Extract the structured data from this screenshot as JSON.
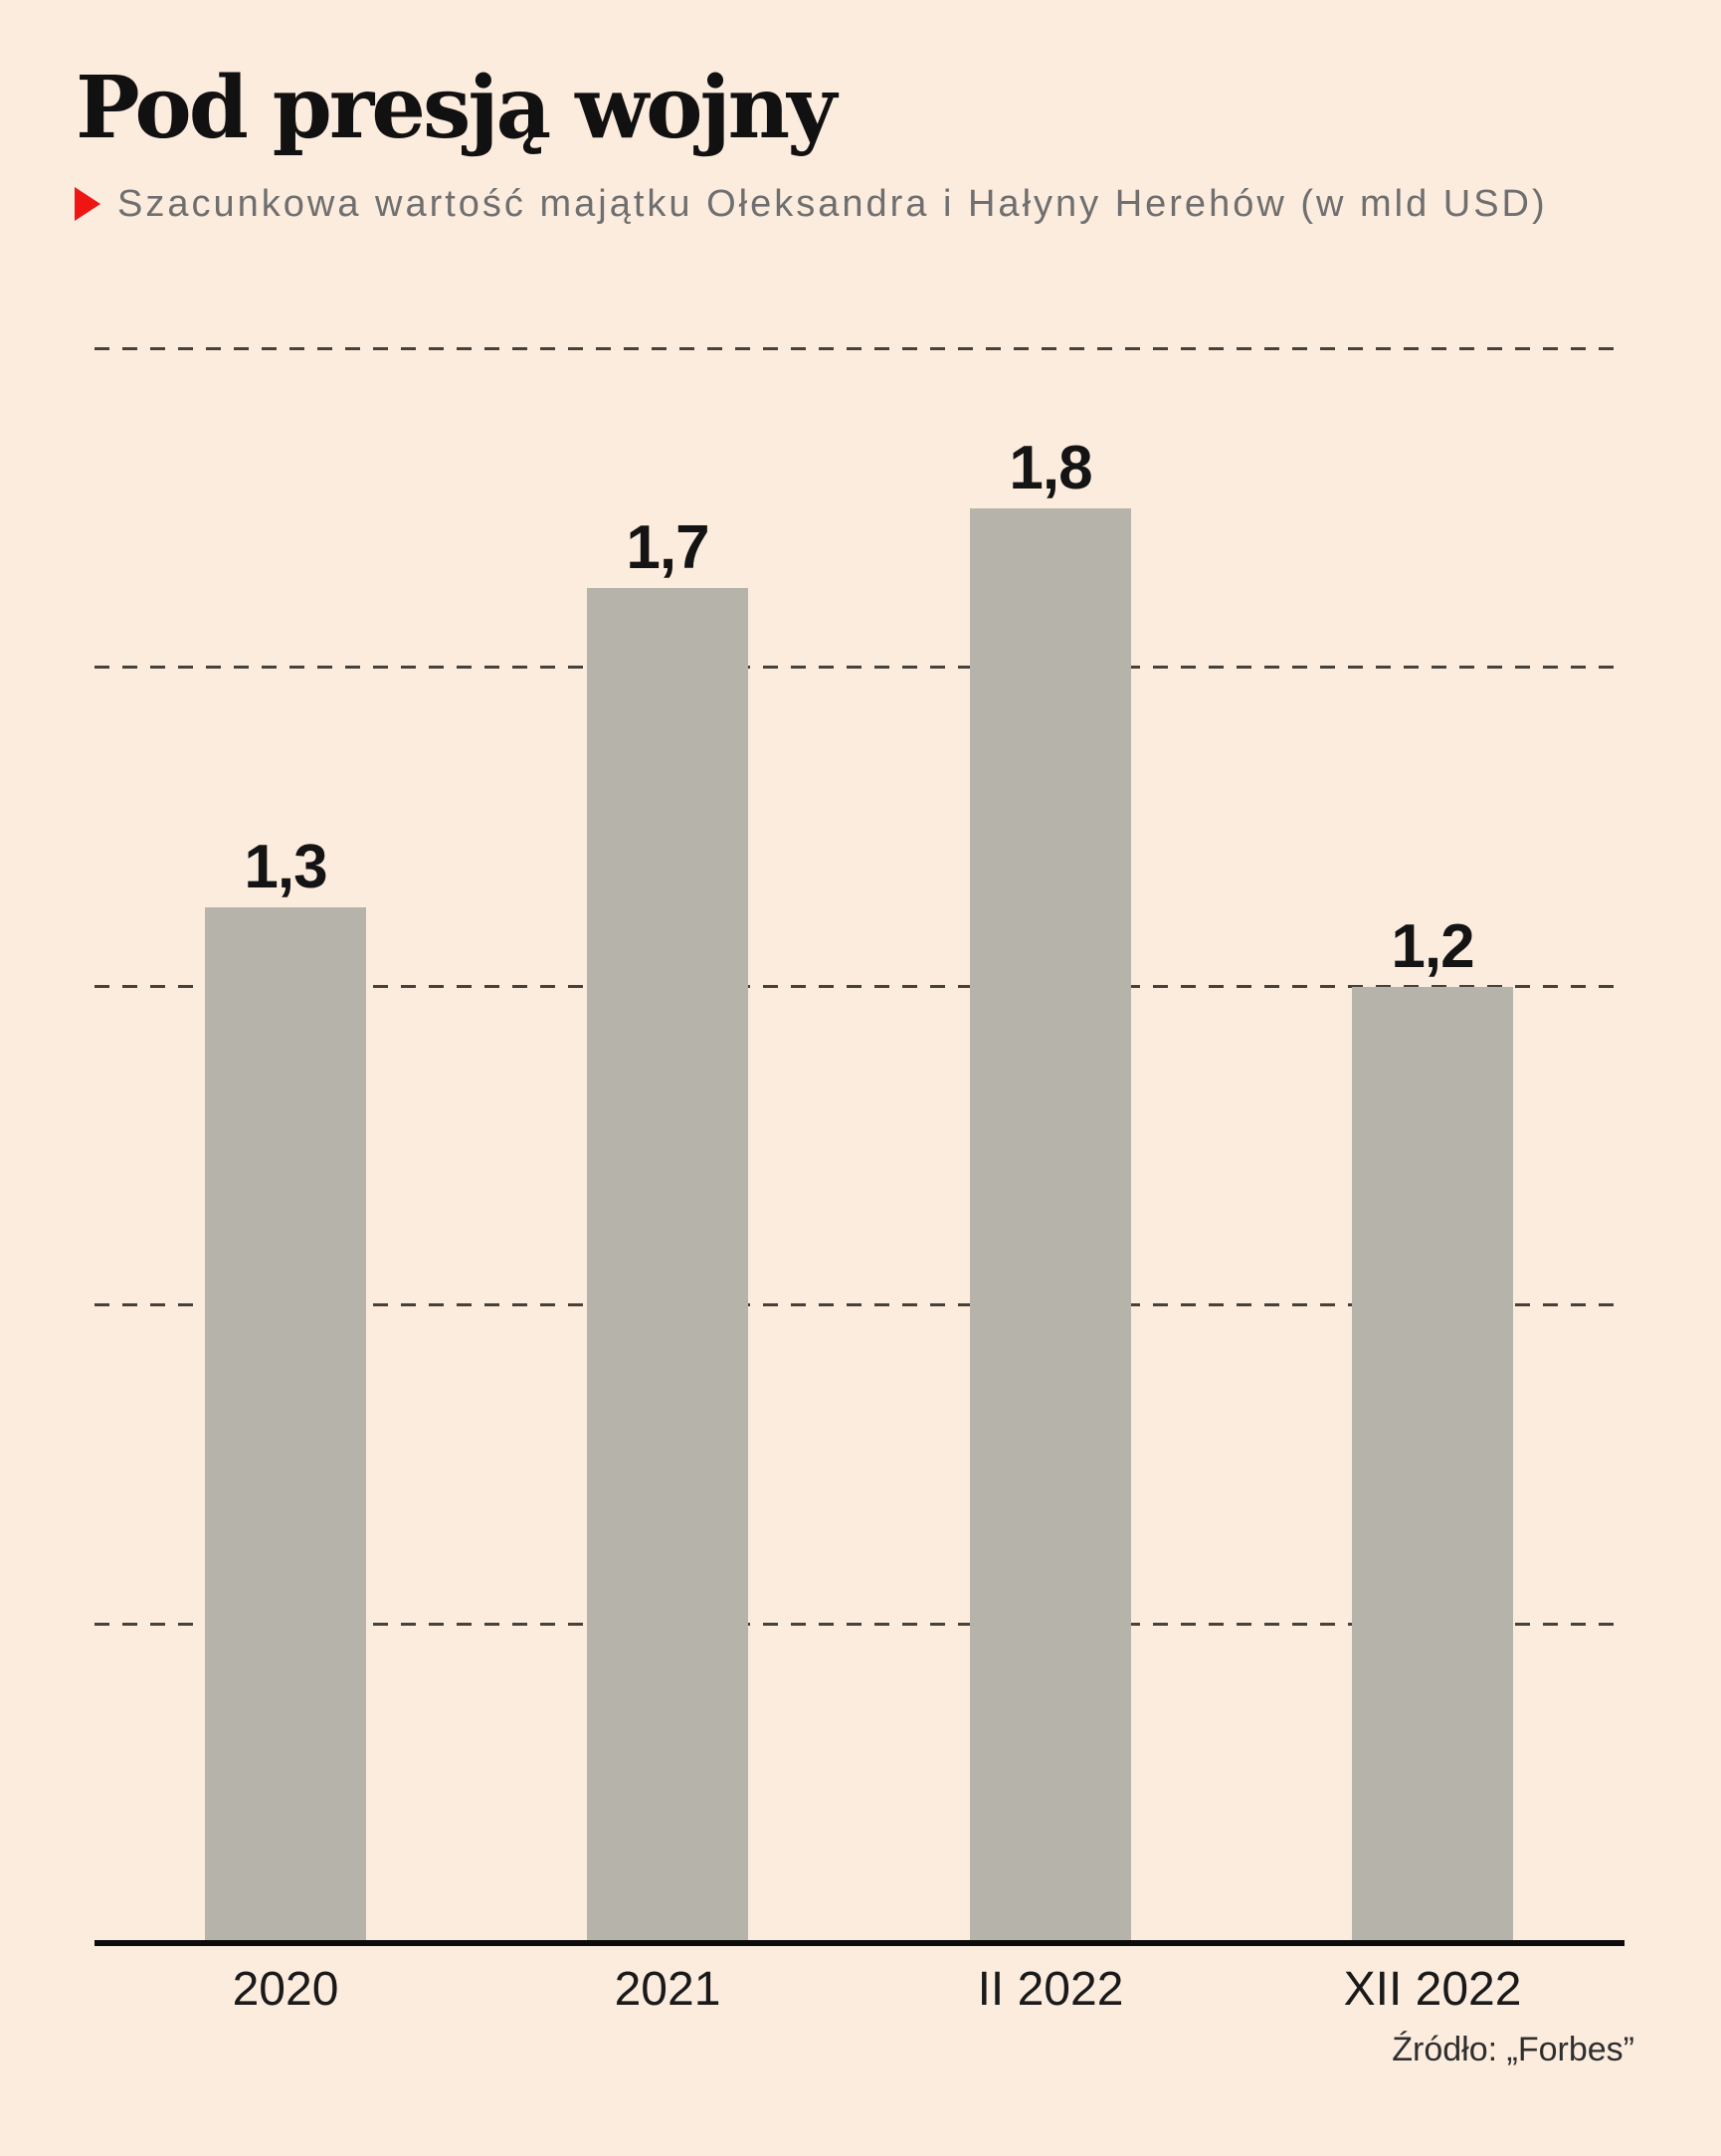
{
  "header": {
    "title": "Pod presją wojny",
    "subtitle": "Szacunkowa wartość majątku Ołeksandra i Hałyny Herehów (w mld USD)",
    "bullet_icon": "right-pointing-triangle"
  },
  "source_note": "Źródło: „Forbes”",
  "colors": {
    "background": "#fbecde",
    "bar": "#b5b3aa",
    "title": "#111111",
    "subtitle": "#6f6f6f",
    "accent_red": "#ee1512",
    "gridline": "#46423b",
    "axis": "#0c0c0c",
    "value_label": "#141414",
    "tick_label": "#1a1a1a",
    "source": "#2e2e2e"
  },
  "chart_data": {
    "type": "bar",
    "categories": [
      "2020",
      "2021",
      "II 2022",
      "XII 2022"
    ],
    "values": [
      1.3,
      1.7,
      1.8,
      1.2
    ],
    "value_labels": [
      "1,3",
      "1,7",
      "1,8",
      "1,2"
    ],
    "title": "Pod presją wojny",
    "subtitle": "Szacunkowa wartość majątku Ołeksandra i Hałyny Herehów (w mld USD)",
    "xlabel": "",
    "ylabel": "",
    "unit": "mld USD",
    "ylim": [
      0,
      2.0
    ],
    "gridline_values": [
      0.4,
      0.8,
      1.2,
      1.6,
      2.0
    ],
    "grid": "horizontal-dashed, no y tick labels",
    "legend": "none",
    "bar_color": "#b5b3aa",
    "source": "Źródło: „Forbes”"
  }
}
